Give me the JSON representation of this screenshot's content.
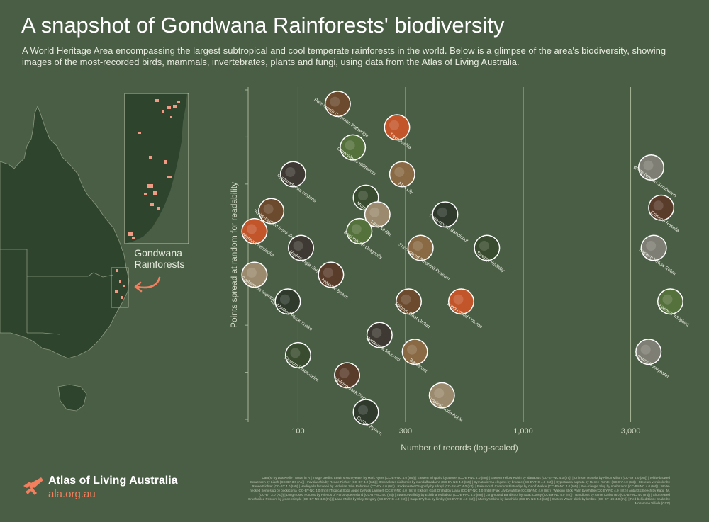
{
  "title": "A snapshot of Gondwana Rainforests' biodiversity",
  "subtitle": "A World Heritage Area encompassing the largest subtropical and cool temperate rainforests in the world. Below is a glimpse of the area's biodiversity, showing images of the most-recorded birds, mammals, invertebrates, plants and fungi, using data from the Atlas of Living Australia.",
  "map": {
    "callout_label": "Gondwana Rainforests",
    "land_color": "#2e442c",
    "highlight_color": "#f29a84"
  },
  "colors": {
    "background": "#4a5e45",
    "gridline": "#a6b497",
    "accent": "#f27f5e"
  },
  "chart_data": {
    "type": "scatter",
    "xlabel": "Number of records (log-scaled)",
    "ylabel": "Points spread at random for readability",
    "x_scale": "log",
    "xlim": [
      60,
      5000
    ],
    "ylim": [
      0,
      1
    ],
    "x_ticks": [
      100,
      300,
      1000,
      3000
    ],
    "x_tick_labels": [
      "100",
      "300",
      "1,000",
      "3,000"
    ],
    "grid": true,
    "points": [
      {
        "name": "Pale-mouth Common Flatsedge",
        "x": 150,
        "y": 0.95
      },
      {
        "name": "Favolaschia",
        "x": 275,
        "y": 0.88
      },
      {
        "name": "Omphalotus nidiformis",
        "x": 175,
        "y": 0.82
      },
      {
        "name": "Cymatoderma elegans",
        "x": 95,
        "y": 0.74
      },
      {
        "name": "Flax Lily",
        "x": 290,
        "y": 0.74
      },
      {
        "name": "Murray's Skink",
        "x": 200,
        "y": 0.67
      },
      {
        "name": "White-browed Scrubwren",
        "x": 3700,
        "y": 0.76
      },
      {
        "name": "Crimson Rosella",
        "x": 4100,
        "y": 0.64
      },
      {
        "name": "Land Mullet",
        "x": 225,
        "y": 0.62
      },
      {
        "name": "Long-nosed Bandicoot",
        "x": 450,
        "y": 0.62
      },
      {
        "name": "White-necked Semi-slug",
        "x": 76,
        "y": 0.63
      },
      {
        "name": "Stereum versicolor",
        "x": 64,
        "y": 0.57
      },
      {
        "name": "Rockmaster Dragonfly",
        "x": 187,
        "y": 0.57
      },
      {
        "name": "Red-triangle Slug",
        "x": 103,
        "y": 0.52
      },
      {
        "name": "Short-eared Brushtail Possum",
        "x": 350,
        "y": 0.52
      },
      {
        "name": "Swamp Wallaby",
        "x": 690,
        "y": 0.52
      },
      {
        "name": "Eastern Yellow Robin",
        "x": 3800,
        "y": 0.52
      },
      {
        "name": "Antarctic Beech",
        "x": 140,
        "y": 0.44
      },
      {
        "name": "Cyptotrama asprata",
        "x": 64,
        "y": 0.44
      },
      {
        "name": "Red-bellied Black Snake",
        "x": 90,
        "y": 0.36
      },
      {
        "name": "Elkhorn Goat Orchid",
        "x": 310,
        "y": 0.36
      },
      {
        "name": "Long-nosed Potoroo",
        "x": 530,
        "y": 0.36
      },
      {
        "name": "Eastern Whipbird",
        "x": 4500,
        "y": 0.36
      },
      {
        "name": "Hedleyella falconeri",
        "x": 230,
        "y": 0.26
      },
      {
        "name": "Bandicoot",
        "x": 330,
        "y": 0.21
      },
      {
        "name": "Eastern Water-skink",
        "x": 100,
        "y": 0.2
      },
      {
        "name": "Lewin's Honeyeater",
        "x": 3600,
        "y": 0.21
      },
      {
        "name": "Walking Stick Palm",
        "x": 165,
        "y": 0.14
      },
      {
        "name": "Tropical Soda Apple",
        "x": 435,
        "y": 0.08
      },
      {
        "name": "Carpet Python",
        "x": 200,
        "y": 0.03
      }
    ]
  },
  "logo": {
    "name": "Atlas of Living Australia",
    "url": "ala.org.au"
  },
  "credits": "Data(s) by Dax Kellie | Made in R | Image credits: Lewin's Honeyeater by Mark Ayers (CC-BY-NC 4.0 (Int)) | Eastern Whipbird by avocet (CC-BY-NC 4.0 (Int)) | Eastern Yellow Robin by alanaplus (CC-BY-NC 4.0 (Int)) | Crimson Rosella by Alison Milton (CC-BY 4.0 (Au)) | White-browed Scrubwren by Liaoh (CC-BY 3.0 (Au)) | Favolaschia by Renee Richter (CC-BY 4.0 (Int)) | Omphalotus nidiformis by mandalftaddams (CC-BY-NC 4.0 (Int)) | Cymatoderma elegans by bmeale (CC-BY-NC 4.0 (Int)) | Cyptotrama asprata by Renee Richter (CC-BY 4.0 (Int)) | Stereum versicolor by Renee Richter (CC-BY 4.0 (Int)) | Hedleyella falconeri by Nicholas John Robinson (CC-BY 4.0 (Int)) | Rockmaster Dragonfly by sdrayl (CC-BY-NC 4.0 (Int)) | Pale-mouth Common Flatsedge by Geoff Walker (CC-BY-NC 4.0 (Int)) | Red-triangle Slug by noahstaton (CC-BY-NC 4.0 (Int)) | White-necked Semi-slug by bockrcoma (CC-BY-NC 4.0 (Int)) | Tropical Soda Apple by Nick Lambert (CC-BY-NC 4.0 (Int)) | Elkhorn Goat Orchid by Liana (CC-BY-NC 4.0 (Int)) | Flax Lily by whittle (CC-BY-NC 4.0 (Int)) | Walking Stick Palm by whittle (CC-BY-NC 4.0 (Int)) | Antarctic Beech by Kagg_M. (CC-BY 3.0 (Au)) | Long-nosed Potoroo by Friends of Parks Queensland (CC-BY-NC 4.0 (Int)) | Swamp Wallaby by Echidna Wallabout (CC-BY-NC 4.0 (Int)) | Long-nosed Bandicoot by Isaac Clarey (CC-BY-NC 4.0 (Int)) | Bandicoot by Annie Carbonaro (CC-BY-NC 4.0 (Int)) | Short-eared Brushtailed Possum by jennensimple (CC-BY-NC 4.0 (Int)) | Land Mullet by Clay Gregory (CC-BY-NC 4.0 (Int)) | Carpet Python by kimby (CC-BY-NC 4.0 (Int)) | Murray's Skink by lamchield (CC-BY-NC 4.0 (Int)) | Eastern Water-skink by kimbee (CC-BY-NC 4.0 (Int)) | Red-bellied Black Snake by Mosamme Villiola (CC0)"
}
